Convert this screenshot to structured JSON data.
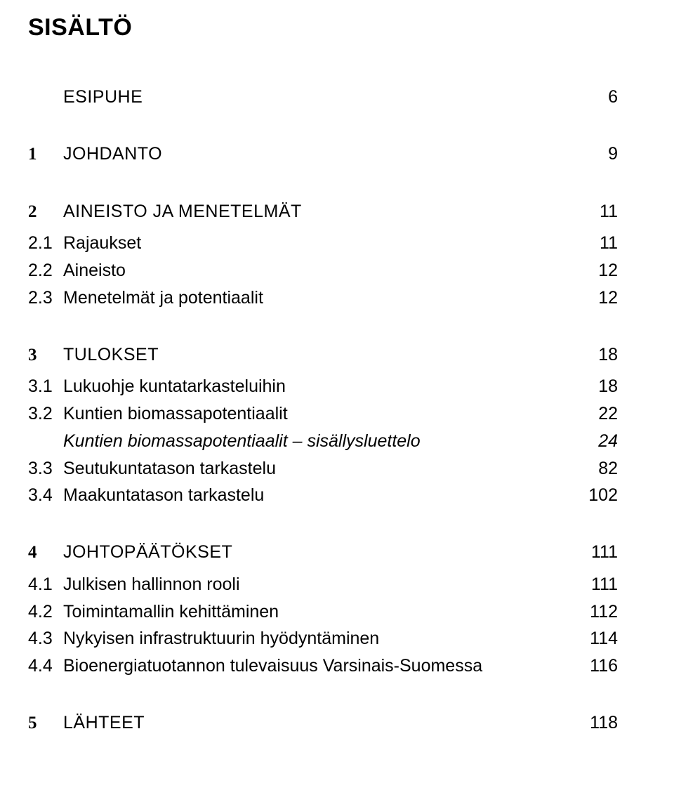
{
  "title": "SISÄLTÖ",
  "toc": {
    "esipuhe": {
      "label": "ESIPUHE",
      "page": "6"
    },
    "s1": {
      "num": "1",
      "label": "JOHDANTO",
      "page": "9"
    },
    "s2": {
      "num": "2",
      "label": "AINEISTO JA MENETELMÄT",
      "page": "11",
      "sub": [
        {
          "num": "2.1",
          "label": "Rajaukset",
          "page": "11"
        },
        {
          "num": "2.2",
          "label": "Aineisto",
          "page": "12"
        },
        {
          "num": "2.3",
          "label": "Menetelmät ja potentiaalit",
          "page": "12"
        }
      ]
    },
    "s3": {
      "num": "3",
      "label": "TULOKSET",
      "page": "18",
      "sub": [
        {
          "num": "3.1",
          "label": "Lukuohje kuntatarkasteluihin",
          "page": "18"
        },
        {
          "num": "3.2",
          "label": "Kuntien biomassapotentiaalit",
          "page": "22"
        },
        {
          "num": "",
          "label": "Kuntien biomassapotentiaalit – sisällysluettelo",
          "page": "24",
          "italic": true
        },
        {
          "num": "3.3",
          "label": "Seutukuntatason tarkastelu",
          "page": "82"
        },
        {
          "num": "3.4",
          "label": "Maakuntatason tarkastelu",
          "page": "102"
        }
      ]
    },
    "s4": {
      "num": "4",
      "label": "JOHTOPÄÄTÖKSET",
      "page": "111",
      "sub": [
        {
          "num": "4.1",
          "label": "Julkisen hallinnon rooli",
          "page": "111"
        },
        {
          "num": "4.2",
          "label": "Toimintamallin kehittäminen",
          "page": "112"
        },
        {
          "num": "4.3",
          "label": "Nykyisen infrastruktuurin hyödyntäminen",
          "page": "114"
        },
        {
          "num": "4.4",
          "label": "Bioenergiatuotannon tulevaisuus Varsinais-Suomessa",
          "page": "116"
        }
      ]
    },
    "s5": {
      "num": "5",
      "label": "LÄHTEET",
      "page": "118"
    }
  }
}
